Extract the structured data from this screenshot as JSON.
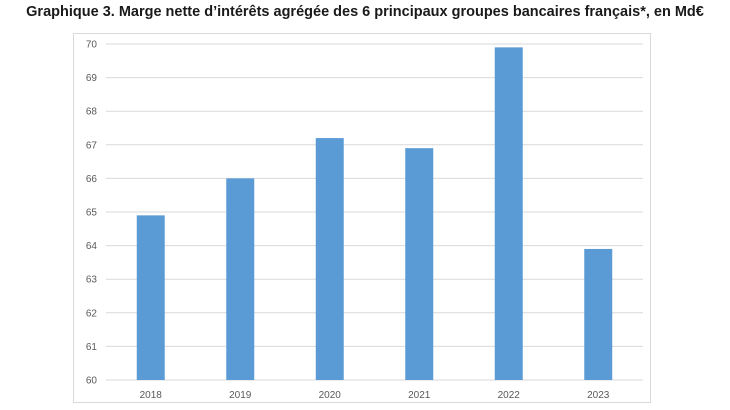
{
  "chart_data": {
    "type": "bar",
    "title": "Graphique 3. Marge nette d’intérêts agrégée des 6 principaux groupes bancaires français*, en Md€",
    "categories": [
      "2018",
      "2019",
      "2020",
      "2021",
      "2022",
      "2023"
    ],
    "values": [
      64.9,
      66.0,
      67.2,
      66.9,
      69.9,
      63.9
    ],
    "xlabel": "",
    "ylabel": "",
    "ylim": [
      60,
      70
    ],
    "yticks": [
      "60",
      "61",
      "62",
      "63",
      "64",
      "65",
      "66",
      "67",
      "68",
      "69",
      "70"
    ],
    "grid": true,
    "legend": "none",
    "bar_color": "#5b9bd5",
    "grid_color": "#d9d9d9"
  }
}
